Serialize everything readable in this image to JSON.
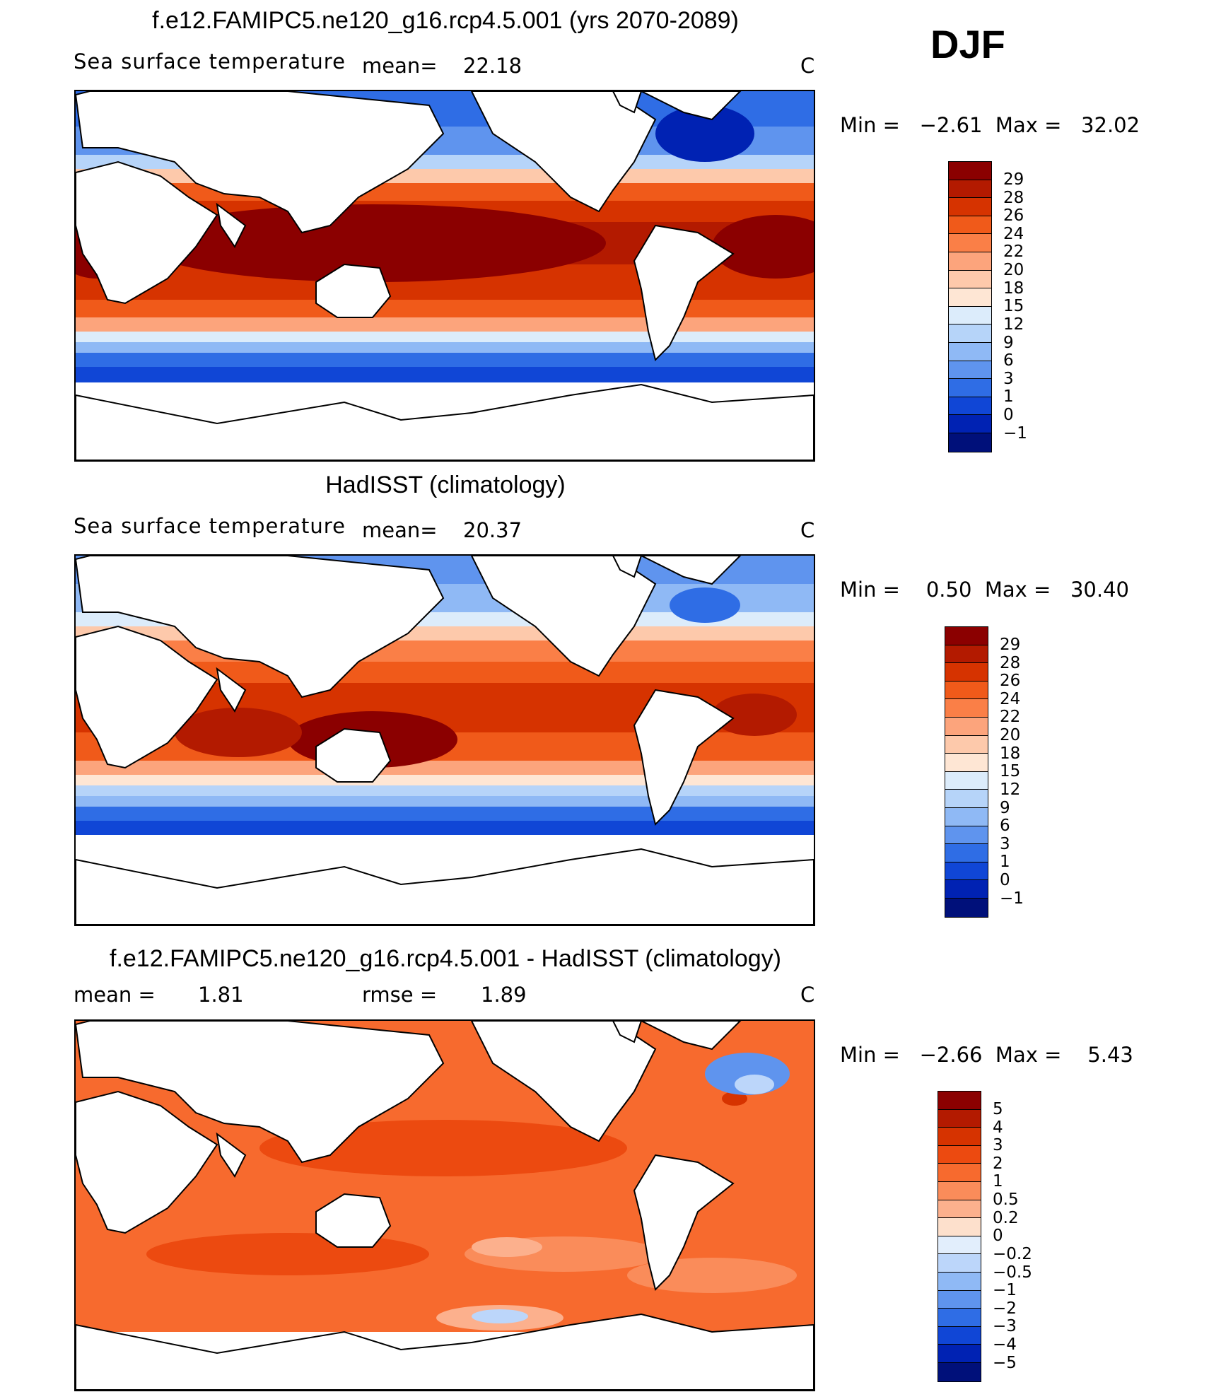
{
  "season": "DJF",
  "panels": [
    {
      "title": "f.e12.FAMIPC5.ne120_g16.rcp4.5.001 (yrs 2070-2089)",
      "subtitle": "Sea surface temperature",
      "mean_label": "mean=",
      "mean_value": "22.18",
      "units": "C",
      "minmax": "Min =   −2.61  Max =   32.02",
      "colorbar_labels": [
        "29",
        "28",
        "26",
        "24",
        "22",
        "20",
        "18",
        "15",
        "12",
        "9",
        "6",
        "3",
        "1",
        "0",
        "−1"
      ]
    },
    {
      "title": "HadISST (climatology)",
      "subtitle": "Sea surface temperature",
      "mean_label": "mean=",
      "mean_value": "20.37",
      "units": "C",
      "minmax": "Min =    0.50  Max =   30.40",
      "colorbar_labels": [
        "29",
        "28",
        "26",
        "24",
        "22",
        "20",
        "18",
        "15",
        "12",
        "9",
        "6",
        "3",
        "1",
        "0",
        "−1"
      ]
    },
    {
      "title": "f.e12.FAMIPC5.ne120_g16.rcp4.5.001 - HadISST (climatology)",
      "mean_label": "mean =",
      "mean_value": "1.81",
      "rmse_label": "rmse =",
      "rmse_value": "1.89",
      "units": "C",
      "minmax": "Min =   −2.66  Max =    5.43",
      "colorbar_labels": [
        "5",
        "4",
        "3",
        "2",
        "1",
        "0.5",
        "0.2",
        "0",
        "−0.2",
        "−0.5",
        "−1",
        "−2",
        "−3",
        "−4",
        "−5"
      ]
    }
  ],
  "colors": {
    "sst_scale": [
      "#8b0000",
      "#b31a00",
      "#d63300",
      "#f05a1a",
      "#fa7f47",
      "#fca47c",
      "#fdc9ab",
      "#fee6d4",
      "#dcecfb",
      "#b6d4f9",
      "#8fb9f5",
      "#5f94ee",
      "#2f6de5",
      "#1046d6",
      "#0022b3",
      "#00107a"
    ],
    "diff_scale": [
      "#8b0000",
      "#b31a00",
      "#d63300",
      "#ec4a10",
      "#f76a2e",
      "#fa8c5a",
      "#fcb08d",
      "#fde0cc",
      "#e2eefc",
      "#bcd6fa",
      "#8fb9f5",
      "#5f94ee",
      "#2f6de5",
      "#1046d6",
      "#0022b3",
      "#00107a"
    ]
  }
}
